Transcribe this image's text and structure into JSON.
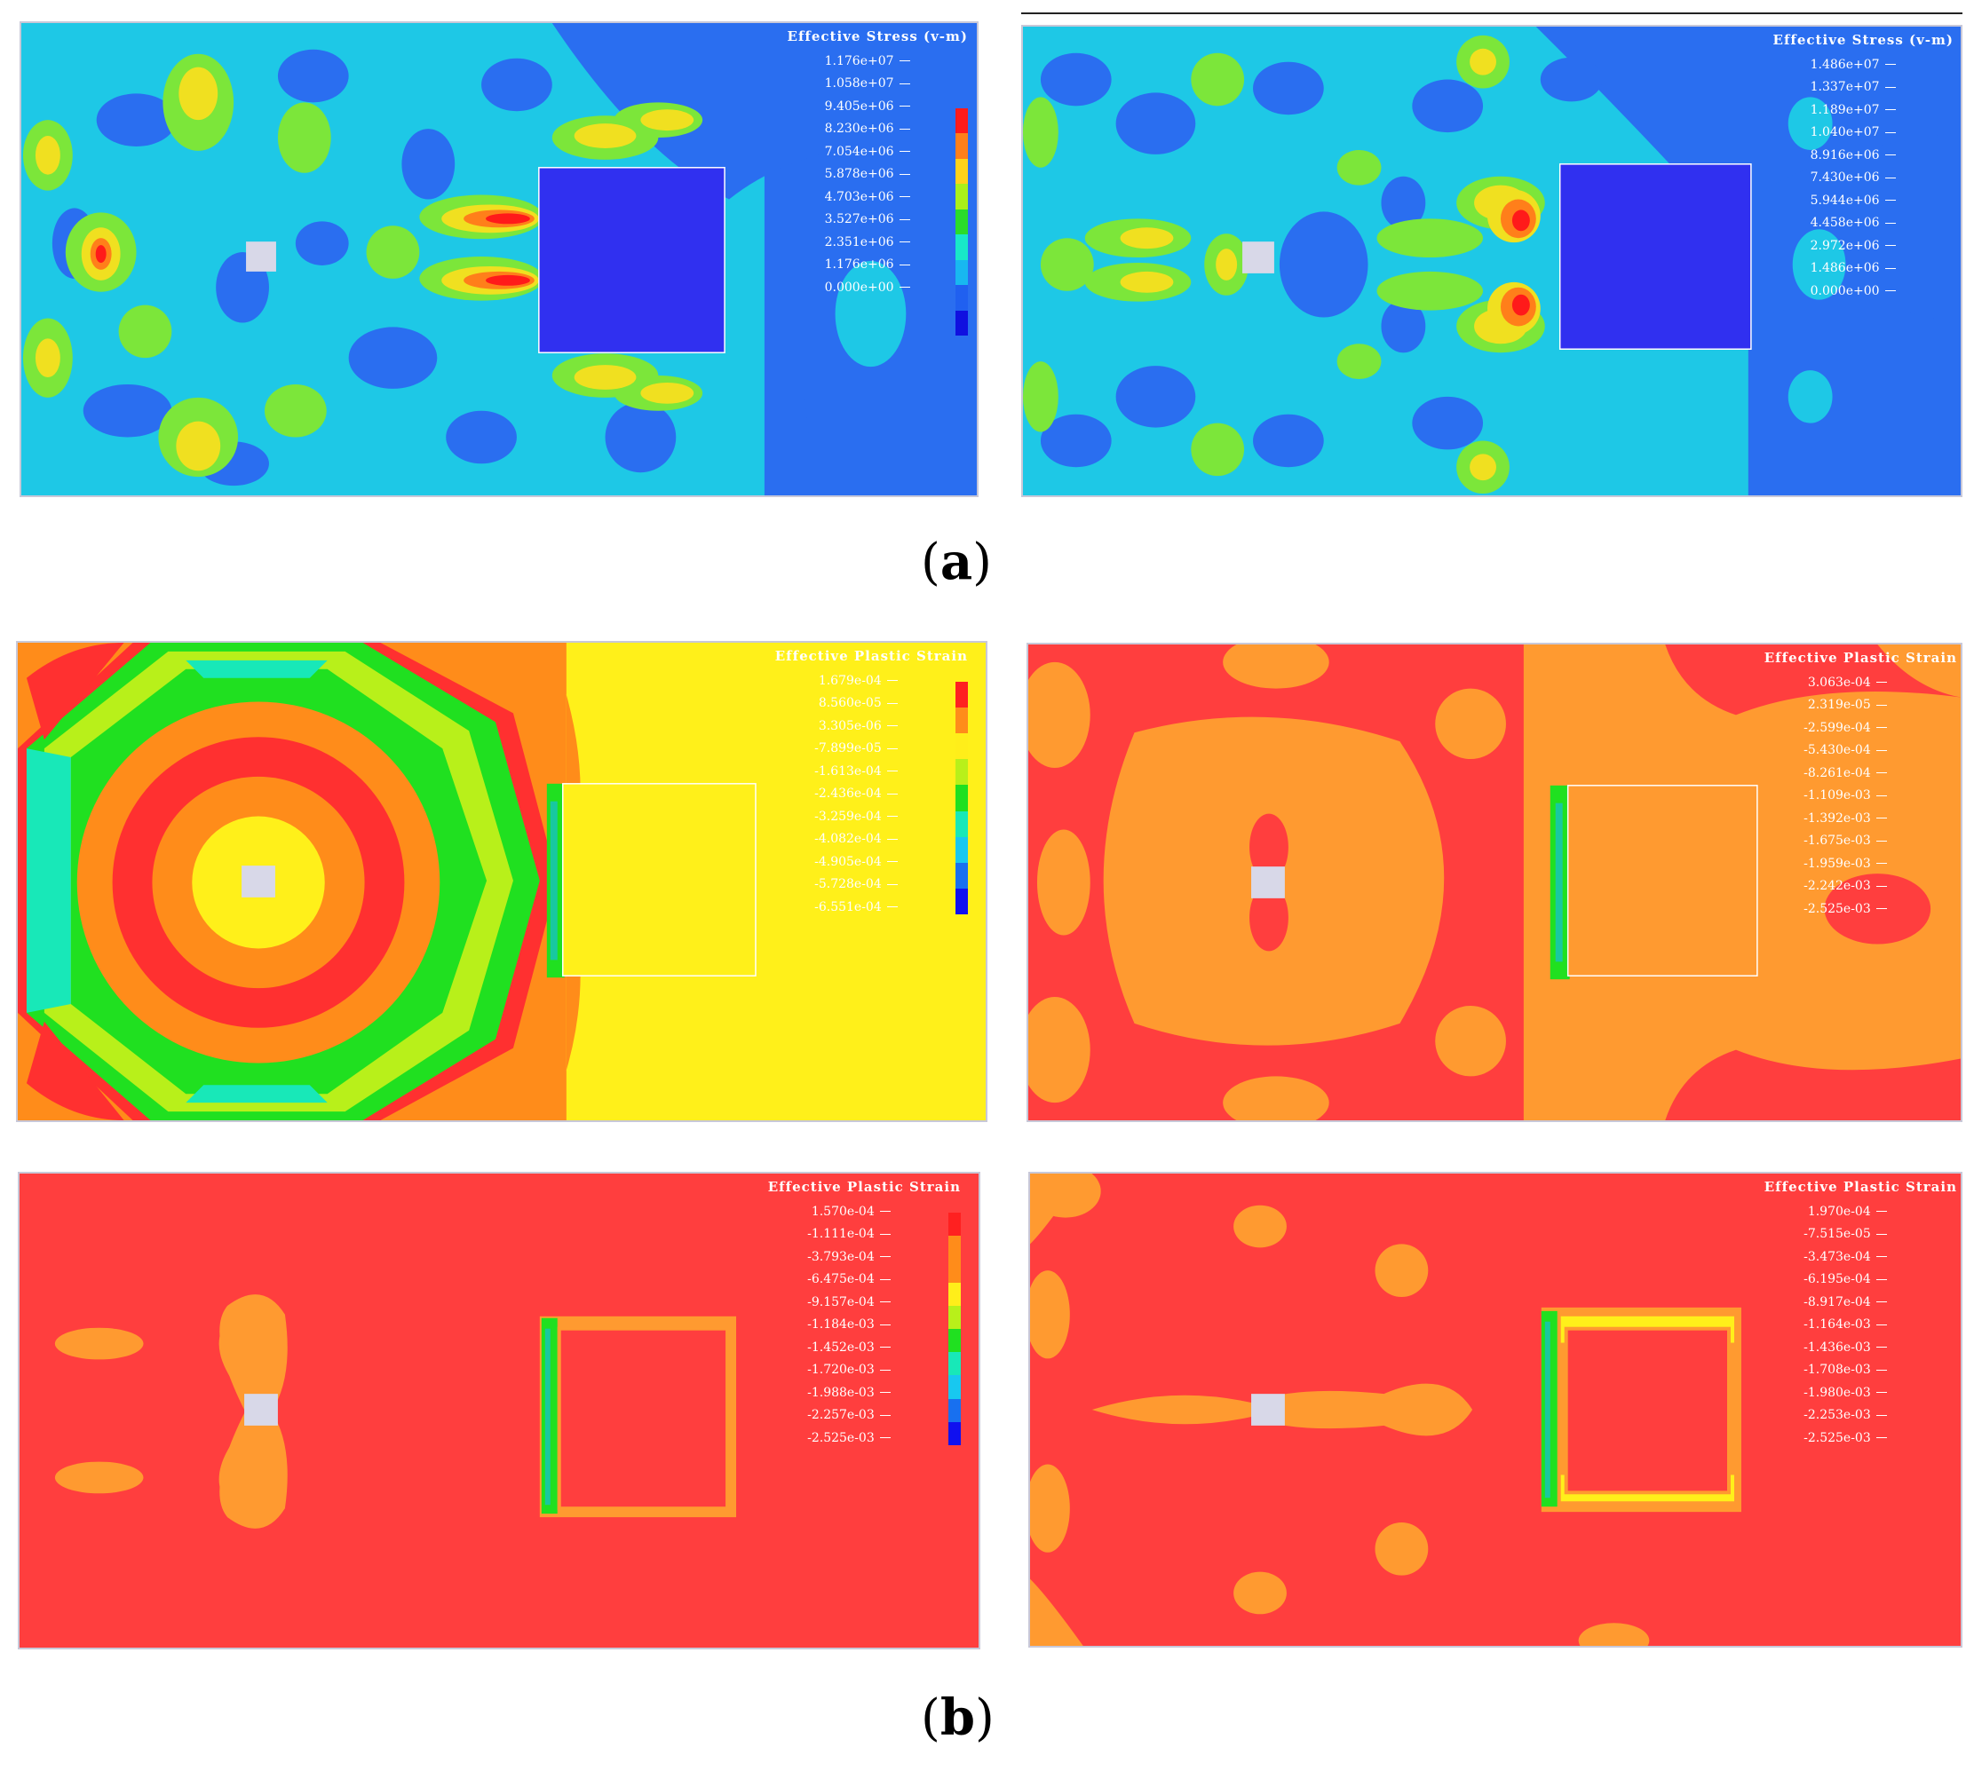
{
  "figure": {
    "caption_a": "a",
    "caption_b": "b"
  },
  "panels": [
    {
      "id": "a-left",
      "legend_title": "Effective Stress (v-m)",
      "legend_values": [
        "1.176e+07",
        "1.058e+07",
        "9.405e+06",
        "8.230e+06",
        "7.054e+06",
        "5.878e+06",
        "4.703e+06",
        "3.527e+06",
        "2.351e+06",
        "1.176e+06",
        "0.000e+00"
      ],
      "colors": [
        "#ff1a1a",
        "#ff7f1a",
        "#ffd21a",
        "#aaf01a",
        "#2adc2a",
        "#18e8c8",
        "#18b8f0",
        "#2060f0",
        "#1010e0"
      ]
    },
    {
      "id": "a-right",
      "legend_title": "Effective Stress (v-m)",
      "legend_values": [
        "1.486e+07",
        "1.337e+07",
        "1.189e+07",
        "1.040e+07",
        "8.916e+06",
        "7.430e+06",
        "5.944e+06",
        "4.458e+06",
        "2.972e+06",
        "1.486e+06",
        "0.000e+00"
      ]
    },
    {
      "id": "b-top-left",
      "legend_title": "Effective Plastic Strain",
      "legend_values": [
        "1.679e-04",
        "8.560e-05",
        "3.305e-06",
        "-7.899e-05",
        "-1.613e-04",
        "-2.436e-04",
        "-3.259e-04",
        "-4.082e-04",
        "-4.905e-04",
        "-5.728e-04",
        "-6.551e-04"
      ],
      "colors": [
        "#ff2020",
        "#ff8c1a",
        "#ffee1a",
        "#b8f01a",
        "#20e020",
        "#18e8b8",
        "#18c8f0",
        "#1870f0",
        "#1010f0"
      ]
    },
    {
      "id": "b-top-right",
      "legend_title": "Effective Plastic Strain",
      "legend_values": [
        "3.063e-04",
        "2.319e-05",
        "-2.599e-04",
        "-5.430e-04",
        "-8.261e-04",
        "-1.109e-03",
        "-1.392e-03",
        "-1.675e-03",
        "-1.959e-03",
        "-2.242e-03",
        "-2.525e-03"
      ]
    },
    {
      "id": "b-bottom-left",
      "legend_title": "Effective Plastic Strain",
      "legend_values": [
        "1.570e-04",
        "-1.111e-04",
        "-3.793e-04",
        "-6.475e-04",
        "-9.157e-04",
        "-1.184e-03",
        "-1.452e-03",
        "-1.720e-03",
        "-1.988e-03",
        "-2.257e-03",
        "-2.525e-03"
      ]
    },
    {
      "id": "b-bottom-right",
      "legend_title": "Effective Plastic Strain",
      "legend_values": [
        "1.970e-04",
        "-7.515e-05",
        "-3.473e-04",
        "-6.195e-04",
        "-8.917e-04",
        "-1.164e-03",
        "-1.436e-03",
        "-1.708e-03",
        "-1.980e-03",
        "-2.253e-03",
        "-2.525e-03"
      ]
    }
  ]
}
